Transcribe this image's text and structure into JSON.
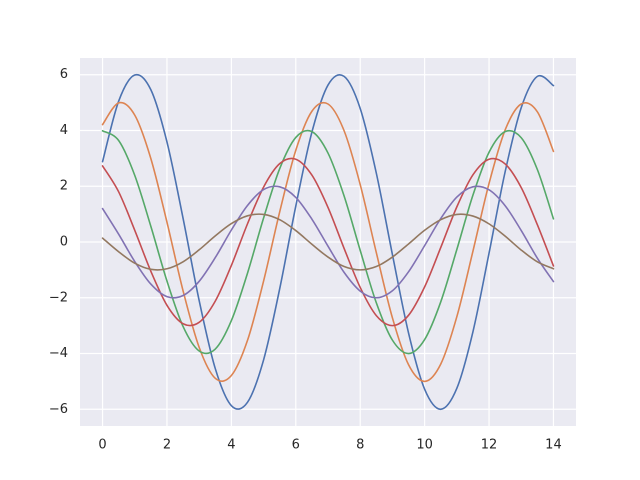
{
  "chart_data": {
    "type": "line",
    "x": [
      0,
      0.5,
      1,
      1.5,
      2,
      2.5,
      3,
      3.5,
      4,
      4.5,
      5,
      5.5,
      6,
      6.5,
      7,
      7.5,
      8,
      8.5,
      9,
      9.5,
      10,
      10.5,
      11,
      11.5,
      12,
      12.5,
      13,
      13.5,
      14
    ],
    "series": [
      {
        "color": "#4c72b0",
        "values": [
          2.88,
          5.05,
          5.99,
          5.46,
          3.59,
          0.85,
          -2.1,
          -4.54,
          -5.87,
          -5.75,
          -4.23,
          -1.68,
          1.29,
          3.94,
          5.63,
          5.94,
          4.79,
          2.47,
          -0.45,
          -3.26,
          -5.28,
          -6.0,
          -5.25,
          -3.22,
          -0.4,
          2.52,
          4.82,
          5.94,
          5.61
        ]
      },
      {
        "color": "#dd8452",
        "values": [
          4.21,
          4.99,
          4.55,
          2.99,
          0.71,
          -1.75,
          -3.78,
          -4.89,
          -4.79,
          -3.53,
          -1.4,
          1.08,
          3.29,
          4.69,
          4.95,
          3.99,
          2.06,
          -0.38,
          -2.72,
          -4.4,
          -5.0,
          -4.38,
          -2.68,
          -0.33,
          2.1,
          4.02,
          4.95,
          4.67,
          3.25
        ]
      },
      {
        "color": "#55a868",
        "values": [
          3.99,
          3.64,
          2.39,
          0.56,
          -1.4,
          -3.03,
          -3.91,
          -3.84,
          -2.82,
          -1.12,
          0.86,
          2.63,
          3.75,
          3.96,
          3.19,
          1.65,
          -0.3,
          -2.18,
          -3.52,
          -4.0,
          -3.5,
          -2.15,
          -0.27,
          1.68,
          3.22,
          3.96,
          3.74,
          2.6,
          0.83
        ]
      },
      {
        "color": "#c44e52",
        "values": [
          2.73,
          1.8,
          0.42,
          -1.05,
          -2.27,
          -2.93,
          -2.88,
          -2.12,
          -0.84,
          0.65,
          1.97,
          2.81,
          2.97,
          2.4,
          1.24,
          -0.23,
          -1.63,
          -2.64,
          -3.0,
          -2.63,
          -1.61,
          -0.2,
          1.26,
          2.41,
          2.97,
          2.8,
          1.95,
          0.62,
          -0.86
        ]
      },
      {
        "color": "#8172b3",
        "values": [
          1.2,
          0.28,
          -0.7,
          -1.51,
          -1.96,
          -1.92,
          -1.41,
          -0.56,
          0.43,
          1.31,
          1.88,
          1.98,
          1.6,
          0.82,
          -0.15,
          -1.09,
          -1.76,
          -2.0,
          -1.75,
          -1.07,
          -0.13,
          0.84,
          1.61,
          1.98,
          1.87,
          1.3,
          0.41,
          -0.58,
          -1.42
        ]
      },
      {
        "color": "#937860",
        "values": [
          0.14,
          -0.35,
          -0.76,
          -0.98,
          -0.96,
          -0.71,
          -0.28,
          0.22,
          0.66,
          0.94,
          0.99,
          0.8,
          0.41,
          -0.08,
          -0.54,
          -0.88,
          -1.0,
          -0.88,
          -0.54,
          -0.07,
          0.42,
          0.8,
          0.99,
          0.93,
          0.65,
          0.21,
          -0.29,
          -0.71,
          -0.96
        ]
      }
    ],
    "xlim": [
      -0.7,
      14.7
    ],
    "ylim": [
      -6.6,
      6.6
    ],
    "xticks": [
      0,
      2,
      4,
      6,
      8,
      10,
      12,
      14
    ],
    "yticks": [
      {
        "value": -6,
        "label": "−6"
      },
      {
        "value": -4,
        "label": "−4"
      },
      {
        "value": -2,
        "label": "−2"
      },
      0,
      2,
      4,
      6
    ],
    "grid": true,
    "background": "#eaeaf2"
  }
}
